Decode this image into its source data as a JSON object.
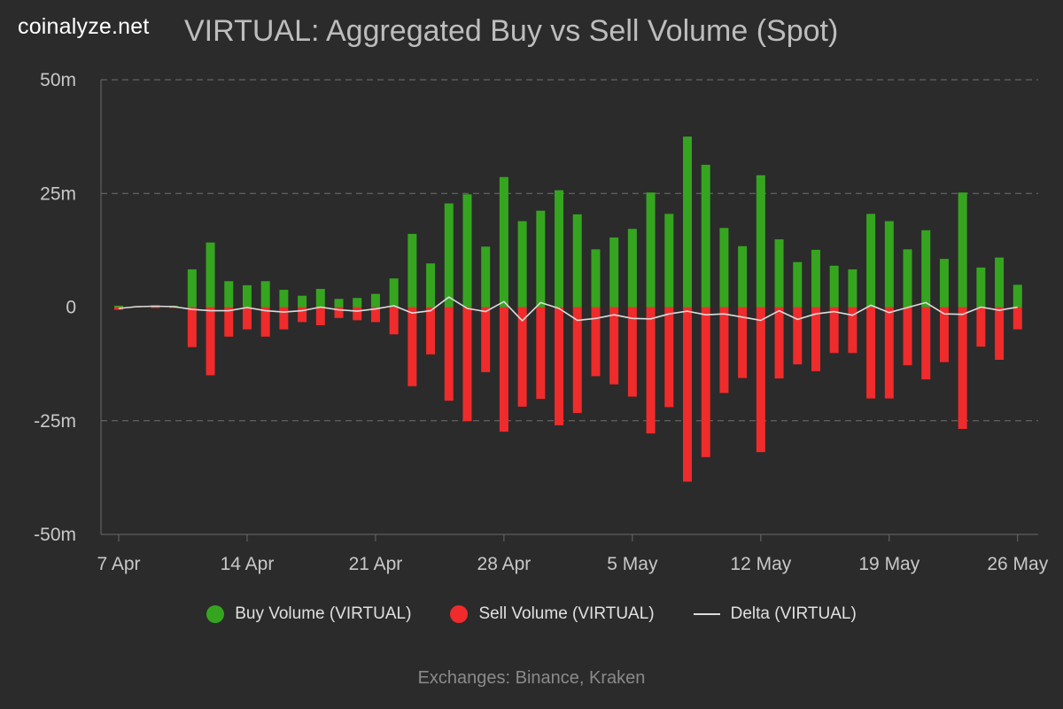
{
  "brand": "coinalyze.net",
  "footer": "Exchanges: Binance, Kraken",
  "chart_data": {
    "type": "bar",
    "title": "VIRTUAL: Aggregated Buy vs Sell Volume (Spot)",
    "y_ticks": [
      {
        "value": 50,
        "label": "50m"
      },
      {
        "value": 25,
        "label": "25m"
      },
      {
        "value": 0,
        "label": "0"
      },
      {
        "value": -25,
        "label": "-25m"
      },
      {
        "value": -50,
        "label": "-50m"
      }
    ],
    "ylim": [
      -50,
      50
    ],
    "x_start": "2025-04-07",
    "x_ticks": [
      {
        "date": "2025-04-07",
        "label": "7 Apr"
      },
      {
        "date": "2025-04-14",
        "label": "14 Apr"
      },
      {
        "date": "2025-04-21",
        "label": "21 Apr"
      },
      {
        "date": "2025-04-28",
        "label": "28 Apr"
      },
      {
        "date": "2025-05-05",
        "label": "5 May"
      },
      {
        "date": "2025-05-12",
        "label": "12 May"
      },
      {
        "date": "2025-05-19",
        "label": "19 May"
      },
      {
        "date": "2025-05-26",
        "label": "26 May"
      }
    ],
    "grid": true,
    "legend_position": "bottom",
    "dates": [
      "2025-04-07",
      "2025-04-08",
      "2025-04-09",
      "2025-04-10",
      "2025-04-11",
      "2025-04-12",
      "2025-04-13",
      "2025-04-14",
      "2025-04-15",
      "2025-04-16",
      "2025-04-17",
      "2025-04-18",
      "2025-04-19",
      "2025-04-20",
      "2025-04-21",
      "2025-04-22",
      "2025-04-23",
      "2025-04-24",
      "2025-04-25",
      "2025-04-26",
      "2025-04-27",
      "2025-04-28",
      "2025-04-29",
      "2025-04-30",
      "2025-05-01",
      "2025-05-02",
      "2025-05-03",
      "2025-05-04",
      "2025-05-05",
      "2025-05-06",
      "2025-05-07",
      "2025-05-08",
      "2025-05-09",
      "2025-05-10",
      "2025-05-11",
      "2025-05-12",
      "2025-05-13",
      "2025-05-14",
      "2025-05-15",
      "2025-05-16",
      "2025-05-17",
      "2025-05-18",
      "2025-05-19",
      "2025-05-20",
      "2025-05-21",
      "2025-05-22",
      "2025-05-23",
      "2025-05-24",
      "2025-05-25",
      "2025-05-26"
    ],
    "series": [
      {
        "name": "Buy Volume (VIRTUAL)",
        "color": "#35a520",
        "values": [
          0.3,
          0.2,
          0.4,
          0.3,
          8.3,
          14.2,
          5.7,
          4.8,
          5.7,
          3.8,
          2.5,
          4.0,
          1.8,
          2.0,
          2.9,
          6.3,
          16.1,
          9.6,
          22.8,
          24.8,
          13.3,
          28.6,
          18.9,
          21.2,
          25.7,
          20.4,
          12.7,
          15.3,
          17.2,
          25.2,
          20.5,
          37.5,
          31.3,
          17.4,
          13.4,
          29.0,
          14.9,
          9.9,
          12.6,
          9.1,
          8.3,
          20.5,
          18.9,
          12.7,
          16.9,
          10.6,
          25.2,
          8.7,
          10.9,
          4.9
        ]
      },
      {
        "name": "Sell Volume (VIRTUAL)",
        "color": "#f02b2b",
        "values": [
          -0.6,
          -0.1,
          -0.2,
          -0.2,
          -8.8,
          -15.0,
          -6.5,
          -4.9,
          -6.5,
          -4.9,
          -3.3,
          -4.0,
          -2.4,
          -2.9,
          -3.3,
          -6.0,
          -17.4,
          -10.4,
          -20.6,
          -25.1,
          -14.3,
          -27.4,
          -21.9,
          -20.2,
          -26.0,
          -23.3,
          -15.2,
          -17.0,
          -19.7,
          -27.8,
          -22.0,
          -38.4,
          -33.0,
          -18.9,
          -15.6,
          -31.9,
          -15.7,
          -12.6,
          -14.1,
          -10.1,
          -10.1,
          -20.1,
          -20.1,
          -12.8,
          -15.9,
          -12.1,
          -26.8,
          -8.7,
          -11.6,
          -4.9
        ]
      },
      {
        "name": "Delta (VIRTUAL)",
        "color": "#dcdcdc",
        "values": [
          -0.3,
          0.1,
          0.2,
          0.1,
          -0.5,
          -0.8,
          -0.8,
          -0.1,
          -0.8,
          -1.1,
          -0.8,
          0.0,
          -0.6,
          -0.9,
          -0.4,
          0.3,
          -1.3,
          -0.8,
          2.2,
          -0.3,
          -1.0,
          1.2,
          -3.0,
          1.0,
          -0.3,
          -2.9,
          -2.5,
          -1.7,
          -2.5,
          -2.6,
          -1.5,
          -0.9,
          -1.7,
          -1.5,
          -2.2,
          -2.9,
          -0.8,
          -2.7,
          -1.5,
          -1.0,
          -1.8,
          0.4,
          -1.2,
          -0.1,
          1.0,
          -1.5,
          -1.6,
          0.0,
          -0.7,
          0.0
        ]
      }
    ]
  }
}
